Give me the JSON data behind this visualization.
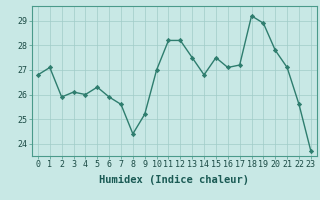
{
  "x": [
    0,
    1,
    2,
    3,
    4,
    5,
    6,
    7,
    8,
    9,
    10,
    11,
    12,
    13,
    14,
    15,
    16,
    17,
    18,
    19,
    20,
    21,
    22,
    23
  ],
  "y": [
    26.8,
    27.1,
    25.9,
    26.1,
    26.0,
    26.3,
    25.9,
    25.6,
    24.4,
    25.2,
    27.0,
    28.2,
    28.2,
    27.5,
    26.8,
    27.5,
    27.1,
    27.2,
    29.2,
    28.9,
    27.8,
    27.1,
    25.6,
    23.7
  ],
  "line_color": "#2e7d6e",
  "marker": "D",
  "marker_size": 2.2,
  "bg_color": "#c8e8e5",
  "grid_color": "#a0ccc8",
  "xlabel": "Humidex (Indice chaleur)",
  "ylim_min": 23.5,
  "ylim_max": 29.6,
  "yticks": [
    24,
    25,
    26,
    27,
    28,
    29
  ],
  "xticks": [
    0,
    1,
    2,
    3,
    4,
    5,
    6,
    7,
    8,
    9,
    10,
    11,
    12,
    13,
    14,
    15,
    16,
    17,
    18,
    19,
    20,
    21,
    22,
    23
  ],
  "xlabel_fontsize": 7.5,
  "tick_fontsize": 6.0,
  "line_width": 1.0
}
